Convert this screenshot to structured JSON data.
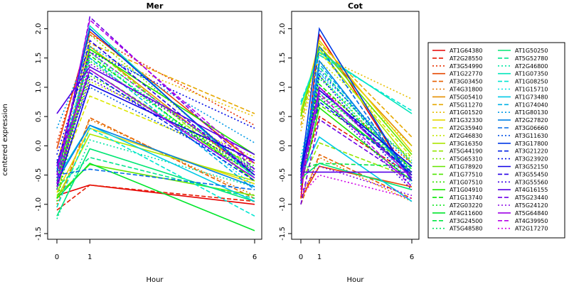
{
  "chart_data": [
    {
      "type": "line",
      "title": "Mer",
      "xlabel": "Hour",
      "ylabel": "centered expression",
      "x": [
        0,
        1,
        6
      ],
      "ylim": [
        -1.5,
        2.2
      ],
      "yticks": [
        "-1.5",
        "-1.0",
        "-0.5",
        "0.0",
        "0.5",
        "1.0",
        "1.5",
        "2.0"
      ],
      "xticks": [
        "0",
        "1",
        "6"
      ],
      "series": [
        {
          "name": "AT1G64380",
          "values": [
            -0.85,
            -0.67,
            -1.0
          ]
        },
        {
          "name": "AT2G28550",
          "values": [
            -1.1,
            -0.67,
            -0.95
          ]
        },
        {
          "name": "AT3G54990",
          "values": [
            0.05,
            1.9,
            0.35
          ]
        },
        {
          "name": "AT1G22770",
          "values": [
            -0.05,
            1.95,
            -0.3
          ]
        },
        {
          "name": "AT3G03450",
          "values": [
            -1.05,
            0.48,
            -0.9
          ]
        },
        {
          "name": "AT4G31800",
          "values": [
            -1.0,
            0.45,
            -0.85
          ]
        },
        {
          "name": "AT5G05410",
          "values": [
            -0.7,
            1.7,
            -0.5
          ]
        },
        {
          "name": "AT5G11270",
          "values": [
            -0.3,
            1.75,
            0.55
          ]
        },
        {
          "name": "AT1G01520",
          "values": [
            -0.9,
            1.6,
            0.5
          ]
        },
        {
          "name": "AT1G32330",
          "values": [
            -0.8,
            0.3,
            -0.65
          ]
        },
        {
          "name": "AT2G35940",
          "values": [
            -0.6,
            0.85,
            -0.3
          ]
        },
        {
          "name": "AT2G46830",
          "values": [
            -0.4,
            1.1,
            -0.2
          ]
        },
        {
          "name": "AT3G16350",
          "values": [
            -0.9,
            0.2,
            -0.6
          ]
        },
        {
          "name": "AT5G44190",
          "values": [
            -0.9,
            1.7,
            -0.6
          ]
        },
        {
          "name": "AT5G65310",
          "values": [
            -0.55,
            1.9,
            -0.45
          ]
        },
        {
          "name": "AT1G78920",
          "values": [
            -0.85,
            -0.32,
            -0.85
          ]
        },
        {
          "name": "AT1G77510",
          "values": [
            -0.6,
            1.3,
            -0.5
          ]
        },
        {
          "name": "AT1G07510",
          "values": [
            -0.45,
            1.2,
            -0.35
          ]
        },
        {
          "name": "AT1G04910",
          "values": [
            -0.75,
            1.65,
            -0.15
          ]
        },
        {
          "name": "AT1G13740",
          "values": [
            -0.5,
            1.55,
            -0.6
          ]
        },
        {
          "name": "AT2G03220",
          "values": [
            -0.95,
            1.45,
            -0.5
          ]
        },
        {
          "name": "AT4G11600",
          "values": [
            -0.9,
            -0.3,
            -1.45
          ]
        },
        {
          "name": "AT3G24500",
          "values": [
            -0.75,
            1.6,
            -0.45
          ]
        },
        {
          "name": "AT5G48580",
          "values": [
            -0.6,
            1.5,
            -0.4
          ]
        },
        {
          "name": "AT1G50250",
          "values": [
            -1.2,
            -0.05,
            -0.95
          ]
        },
        {
          "name": "AT5G52780",
          "values": [
            -0.7,
            -0.2,
            -0.9
          ]
        },
        {
          "name": "AT2G46800",
          "values": [
            -1.25,
            0.1,
            -0.7
          ]
        },
        {
          "name": "AT1G07350",
          "values": [
            -0.5,
            2.05,
            -0.55
          ]
        },
        {
          "name": "AT1G08250",
          "values": [
            -1.05,
            0.3,
            -1.2
          ]
        },
        {
          "name": "AT1G15710",
          "values": [
            -0.45,
            1.6,
            -0.7
          ]
        },
        {
          "name": "AT1G73480",
          "values": [
            -0.55,
            0.35,
            -0.95
          ]
        },
        {
          "name": "AT1G74040",
          "values": [
            -0.4,
            1.5,
            -0.75
          ]
        },
        {
          "name": "AT1G80130",
          "values": [
            0.3,
            1.7,
            0.05
          ]
        },
        {
          "name": "AT2G27820",
          "values": [
            -0.6,
            0.35,
            -0.7
          ]
        },
        {
          "name": "AT3G06660",
          "values": [
            -0.5,
            -0.4,
            -0.75
          ]
        },
        {
          "name": "AT3G11630",
          "values": [
            -0.25,
            1.0,
            -0.45
          ]
        },
        {
          "name": "AT3G17800",
          "values": [
            -0.45,
            2.0,
            -0.5
          ]
        },
        {
          "name": "AT3G21220",
          "values": [
            -0.3,
            1.25,
            -0.6
          ]
        },
        {
          "name": "AT3G23920",
          "values": [
            -0.15,
            1.6,
            0.3
          ]
        },
        {
          "name": "AT3G52150",
          "values": [
            -0.7,
            1.05,
            -0.25
          ]
        },
        {
          "name": "AT3G55450",
          "values": [
            -0.35,
            1.8,
            -0.5
          ]
        },
        {
          "name": "AT3G55560",
          "values": [
            -0.55,
            1.15,
            -0.4
          ]
        },
        {
          "name": "AT4G16155",
          "values": [
            0.55,
            1.35,
            -0.15
          ]
        },
        {
          "name": "AT5G23440",
          "values": [
            -0.65,
            2.2,
            -0.4
          ]
        },
        {
          "name": "AT5G24120",
          "values": [
            -0.75,
            1.4,
            -0.3
          ]
        },
        {
          "name": "AT5G64840",
          "values": [
            -0.35,
            1.3,
            -0.55
          ]
        },
        {
          "name": "AT4G39950",
          "values": [
            -0.5,
            2.15,
            -0.3
          ]
        },
        {
          "name": "AT2G17270",
          "values": [
            -0.7,
            1.6,
            -0.45
          ]
        }
      ]
    },
    {
      "type": "line",
      "title": "Cot",
      "xlabel": "Hour",
      "ylabel": "",
      "x": [
        0,
        1,
        6
      ],
      "ylim": [
        -1.5,
        2.2
      ],
      "yticks": [
        "-1.5",
        "-1.0",
        "-0.5",
        "0.0",
        "0.5",
        "1.0",
        "1.5",
        "2.0"
      ],
      "xticks": [
        "0",
        "1",
        "6"
      ],
      "series": [
        {
          "name": "AT1G64380",
          "values": [
            -0.9,
            1.9,
            -0.6
          ]
        },
        {
          "name": "AT2G28550",
          "values": [
            -0.6,
            0.5,
            -0.5
          ]
        },
        {
          "name": "AT3G54990",
          "values": [
            -0.5,
            1.0,
            -0.3
          ]
        },
        {
          "name": "AT1G22770",
          "values": [
            -0.9,
            -0.35,
            -0.7
          ]
        },
        {
          "name": "AT3G03450",
          "values": [
            -1.0,
            -0.15,
            -0.9
          ]
        },
        {
          "name": "AT4G31800",
          "values": [
            -0.9,
            -0.2,
            -0.95
          ]
        },
        {
          "name": "AT5G05410",
          "values": [
            0.5,
            1.7,
            0.0
          ]
        },
        {
          "name": "AT5G11270",
          "values": [
            0.35,
            1.75,
            0.15
          ]
        },
        {
          "name": "AT1G01520",
          "values": [
            0.25,
            1.55,
            0.8
          ]
        },
        {
          "name": "AT1G32330",
          "values": [
            0.5,
            1.8,
            -0.1
          ]
        },
        {
          "name": "AT2G35940",
          "values": [
            0.55,
            1.6,
            -0.2
          ]
        },
        {
          "name": "AT2G46830",
          "values": [
            0.45,
            1.45,
            0.0
          ]
        },
        {
          "name": "AT3G16350",
          "values": [
            0.6,
            1.65,
            -0.3
          ]
        },
        {
          "name": "AT5G44190",
          "values": [
            -0.65,
            0.05,
            -0.55
          ]
        },
        {
          "name": "AT5G65310",
          "values": [
            -0.5,
            0.85,
            -0.2
          ]
        },
        {
          "name": "AT1G78920",
          "values": [
            0.5,
            1.7,
            -0.15
          ]
        },
        {
          "name": "AT1G77510",
          "values": [
            -0.4,
            0.7,
            -0.35
          ]
        },
        {
          "name": "AT1G07510",
          "values": [
            -0.45,
            1.2,
            -0.5
          ]
        },
        {
          "name": "AT1G04910",
          "values": [
            -0.7,
            0.65,
            -0.6
          ]
        },
        {
          "name": "AT1G13740",
          "values": [
            -0.35,
            1.05,
            -0.4
          ]
        },
        {
          "name": "AT2G03220",
          "values": [
            -0.5,
            0.95,
            -0.5
          ]
        },
        {
          "name": "AT4G11600",
          "values": [
            -0.55,
            0.8,
            -0.45
          ]
        },
        {
          "name": "AT3G24500",
          "values": [
            -0.4,
            -0.3,
            -0.35
          ]
        },
        {
          "name": "AT5G48580",
          "values": [
            -0.3,
            1.15,
            -0.25
          ]
        },
        {
          "name": "AT1G50250",
          "values": [
            -0.55,
            -0.3,
            -0.75
          ]
        },
        {
          "name": "AT5G52780",
          "values": [
            -0.45,
            1.35,
            -0.55
          ]
        },
        {
          "name": "AT2G46800",
          "values": [
            -0.6,
            0.9,
            -0.4
          ]
        },
        {
          "name": "AT1G07350",
          "values": [
            0.7,
            1.6,
            0.55
          ]
        },
        {
          "name": "AT1G08250",
          "values": [
            0.75,
            1.55,
            0.6
          ]
        },
        {
          "name": "AT1G15710",
          "values": [
            -0.2,
            1.25,
            -0.65
          ]
        },
        {
          "name": "AT1G73480",
          "values": [
            -0.5,
            0.15,
            -0.95
          ]
        },
        {
          "name": "AT1G74040",
          "values": [
            -0.6,
            1.4,
            -0.5
          ]
        },
        {
          "name": "AT1G80130",
          "values": [
            -0.35,
            1.25,
            -0.3
          ]
        },
        {
          "name": "AT2G27820",
          "values": [
            -0.55,
            1.45,
            -0.55
          ]
        },
        {
          "name": "AT3G06660",
          "values": [
            -0.65,
            1.7,
            -0.6
          ]
        },
        {
          "name": "AT3G11630",
          "values": [
            -0.4,
            1.3,
            -0.45
          ]
        },
        {
          "name": "AT3G17800",
          "values": [
            -0.45,
            2.0,
            -0.6
          ]
        },
        {
          "name": "AT3G21220",
          "values": [
            -0.5,
            0.75,
            -0.45
          ]
        },
        {
          "name": "AT3G23920",
          "values": [
            -0.6,
            1.2,
            -0.7
          ]
        },
        {
          "name": "AT3G52150",
          "values": [
            -0.4,
            0.95,
            -0.35
          ]
        },
        {
          "name": "AT3G55450",
          "values": [
            -0.55,
            1.0,
            -0.5
          ]
        },
        {
          "name": "AT3G55560",
          "values": [
            -0.7,
            0.85,
            -0.75
          ]
        },
        {
          "name": "AT4G16155",
          "values": [
            -0.45,
            -0.45,
            -0.45
          ]
        },
        {
          "name": "AT5G23440",
          "values": [
            -1.0,
            0.45,
            -0.6
          ]
        },
        {
          "name": "AT5G24120",
          "values": [
            -0.8,
            -0.35,
            -0.85
          ]
        },
        {
          "name": "AT5G64840",
          "values": [
            -0.6,
            1.0,
            -0.55
          ]
        },
        {
          "name": "AT4G39950",
          "values": [
            -0.75,
            0.9,
            -0.7
          ]
        },
        {
          "name": "AT2G17270",
          "values": [
            -0.85,
            -0.5,
            -0.9
          ]
        }
      ]
    }
  ]
}
